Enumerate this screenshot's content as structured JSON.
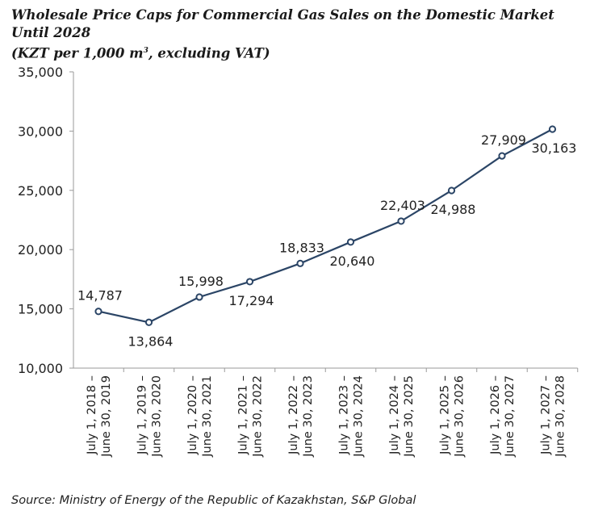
{
  "title_line1": "Wholesale Price Caps for Commercial Gas Sales on the Domestic Market Until 2028",
  "title_line2_pre": "(KZT per 1,000 m",
  "title_line2_sup": "3",
  "title_line2_post": ", excluding VAT)",
  "source": "Source: Ministry of Energy of the Republic of Kazakhstan, S&P Global",
  "chart_data": {
    "type": "line",
    "title": "Wholesale Price Caps for Commercial Gas Sales on the Domestic Market Until 2028 (KZT per 1,000 m3, excluding VAT)",
    "xlabel": "",
    "ylabel": "",
    "ylim": [
      10000,
      35000
    ],
    "yticks": [
      "10,000",
      "15,000",
      "20,000",
      "25,000",
      "30,000",
      "35,000"
    ],
    "grid": false,
    "line_color": "#2b4566",
    "categories": [
      [
        "July 1, 2018 –",
        "June 30, 2019"
      ],
      [
        "July 1, 2019 –",
        "June 30, 2020"
      ],
      [
        "July 1, 2020 –",
        "June 30, 2021"
      ],
      [
        "July 1, 2021 –",
        "June 30, 2022"
      ],
      [
        "July 1, 2022 –",
        "June 30, 2023"
      ],
      [
        "July 1, 2023 –",
        "June 30, 2024"
      ],
      [
        "July 1, 2024 –",
        "June 30, 2025"
      ],
      [
        "July 1, 2025 –",
        "June 30, 2026"
      ],
      [
        "July 1, 2026 –",
        "June 30, 2027"
      ],
      [
        "July 1, 2027 –",
        "June 30, 2028"
      ]
    ],
    "values": [
      14787,
      13864,
      15998,
      17294,
      18833,
      20640,
      22403,
      24988,
      27909,
      30163
    ],
    "labels": [
      "14,787",
      "13,864",
      "15,998",
      "17,294",
      "18,833",
      "20,640",
      "22,403",
      "24,988",
      "27,909",
      "30,163"
    ],
    "label_positions": [
      "above",
      "below",
      "above",
      "below",
      "above",
      "below",
      "above",
      "below",
      "above",
      "below"
    ]
  }
}
